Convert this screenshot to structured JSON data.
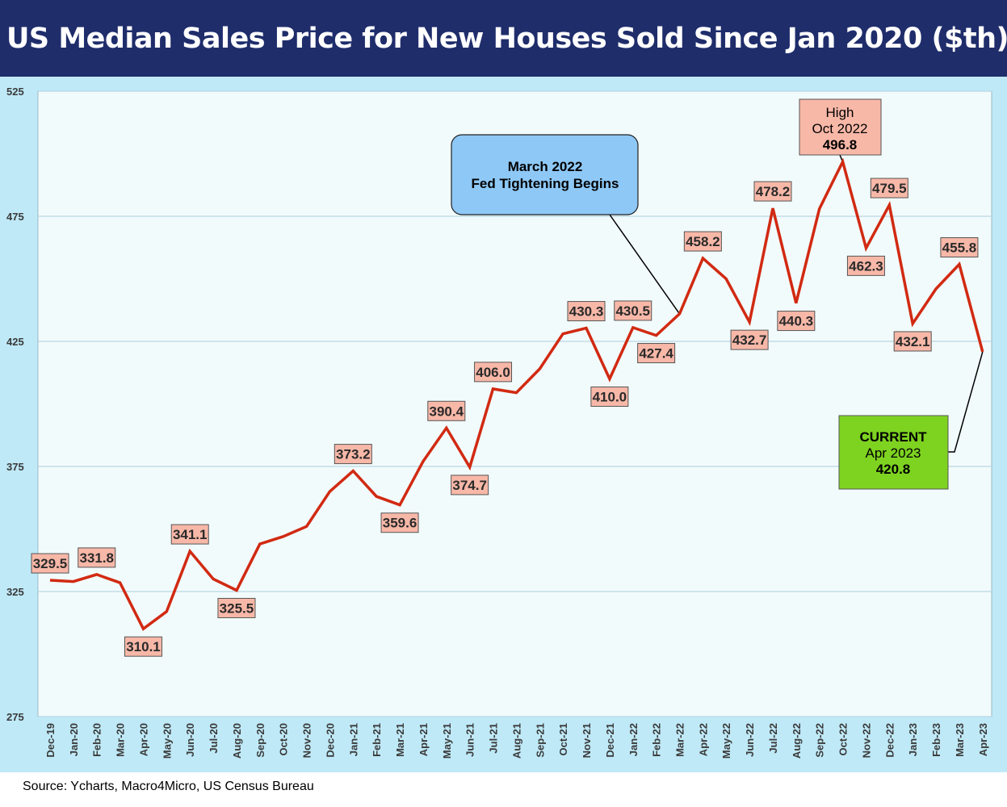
{
  "title": "US Median Sales Price for New Houses Sold Since Jan 2020 ($th)",
  "source": "Source: Ycharts, Macro4Micro, US Census Bureau",
  "colors": {
    "header_bg": "#1f2d6b",
    "outer_bg": "#bfe9f7",
    "plot_bg": "#f2fbfc",
    "line": "#d12a12",
    "label_box": "#f8b8a8",
    "fed_box": "#8ec8f6",
    "current_box": "#7ed321",
    "high_box": "#f8b8a8"
  },
  "chart_data": {
    "type": "line",
    "ylim": [
      275,
      525
    ],
    "yticks": [
      275,
      325,
      375,
      425,
      475,
      525
    ],
    "grid": true,
    "categories": [
      "Dec-19",
      "Jan-20",
      "Feb-20",
      "Mar-20",
      "Apr-20",
      "May-20",
      "Jun-20",
      "Jul-20",
      "Aug-20",
      "Sep-20",
      "Oct-20",
      "Nov-20",
      "Dec-20",
      "Jan-21",
      "Feb-21",
      "Mar-21",
      "Apr-21",
      "May-21",
      "Jun-21",
      "Jul-21",
      "Aug-21",
      "Sep-21",
      "Oct-21",
      "Nov-21",
      "Dec-21",
      "Jan-22",
      "Feb-22",
      "Mar-22",
      "Apr-22",
      "May-22",
      "Jun-22",
      "Jul-22",
      "Aug-22",
      "Sep-22",
      "Oct-22",
      "Nov-22",
      "Dec-22",
      "Jan-23",
      "Feb-23",
      "Mar-23",
      "Apr-23"
    ],
    "values": [
      329.5,
      329.0,
      331.8,
      328.5,
      310.1,
      317.0,
      341.1,
      330.0,
      325.5,
      344.0,
      347.0,
      351.0,
      365.0,
      373.2,
      363.0,
      359.6,
      377.0,
      390.4,
      374.7,
      406.0,
      404.5,
      414.0,
      428.0,
      430.3,
      410.0,
      430.5,
      427.4,
      436.0,
      458.2,
      450.0,
      432.7,
      478.2,
      440.3,
      478.0,
      496.8,
      462.3,
      479.5,
      432.1,
      446.0,
      455.8,
      420.8
    ],
    "data_labels": [
      {
        "index": 0,
        "text": "329.5"
      },
      {
        "index": 2,
        "text": "331.8"
      },
      {
        "index": 4,
        "text": "310.1"
      },
      {
        "index": 6,
        "text": "341.1"
      },
      {
        "index": 8,
        "text": "325.5"
      },
      {
        "index": 13,
        "text": "373.2"
      },
      {
        "index": 15,
        "text": "359.6"
      },
      {
        "index": 17,
        "text": "390.4"
      },
      {
        "index": 18,
        "text": "374.7"
      },
      {
        "index": 19,
        "text": "406.0"
      },
      {
        "index": 23,
        "text": "430.3"
      },
      {
        "index": 24,
        "text": "410.0"
      },
      {
        "index": 25,
        "text": "430.5"
      },
      {
        "index": 26,
        "text": "427.4"
      },
      {
        "index": 28,
        "text": "458.2"
      },
      {
        "index": 30,
        "text": "432.7"
      },
      {
        "index": 31,
        "text": "478.2"
      },
      {
        "index": 32,
        "text": "440.3"
      },
      {
        "index": 35,
        "text": "462.3"
      },
      {
        "index": 36,
        "text": "479.5"
      },
      {
        "index": 37,
        "text": "432.1"
      },
      {
        "index": 39,
        "text": "455.8"
      }
    ],
    "annotations": [
      {
        "id": "fed",
        "lines": [
          "March 2022",
          "Fed Tightening Begins"
        ],
        "points_to_index": 27
      },
      {
        "id": "high",
        "lines": [
          "High",
          "Oct 2022",
          "496.8"
        ],
        "points_to_index": 34
      },
      {
        "id": "current",
        "lines": [
          "CURRENT",
          "Apr 2023",
          "420.8"
        ],
        "points_to_index": 40
      }
    ]
  }
}
